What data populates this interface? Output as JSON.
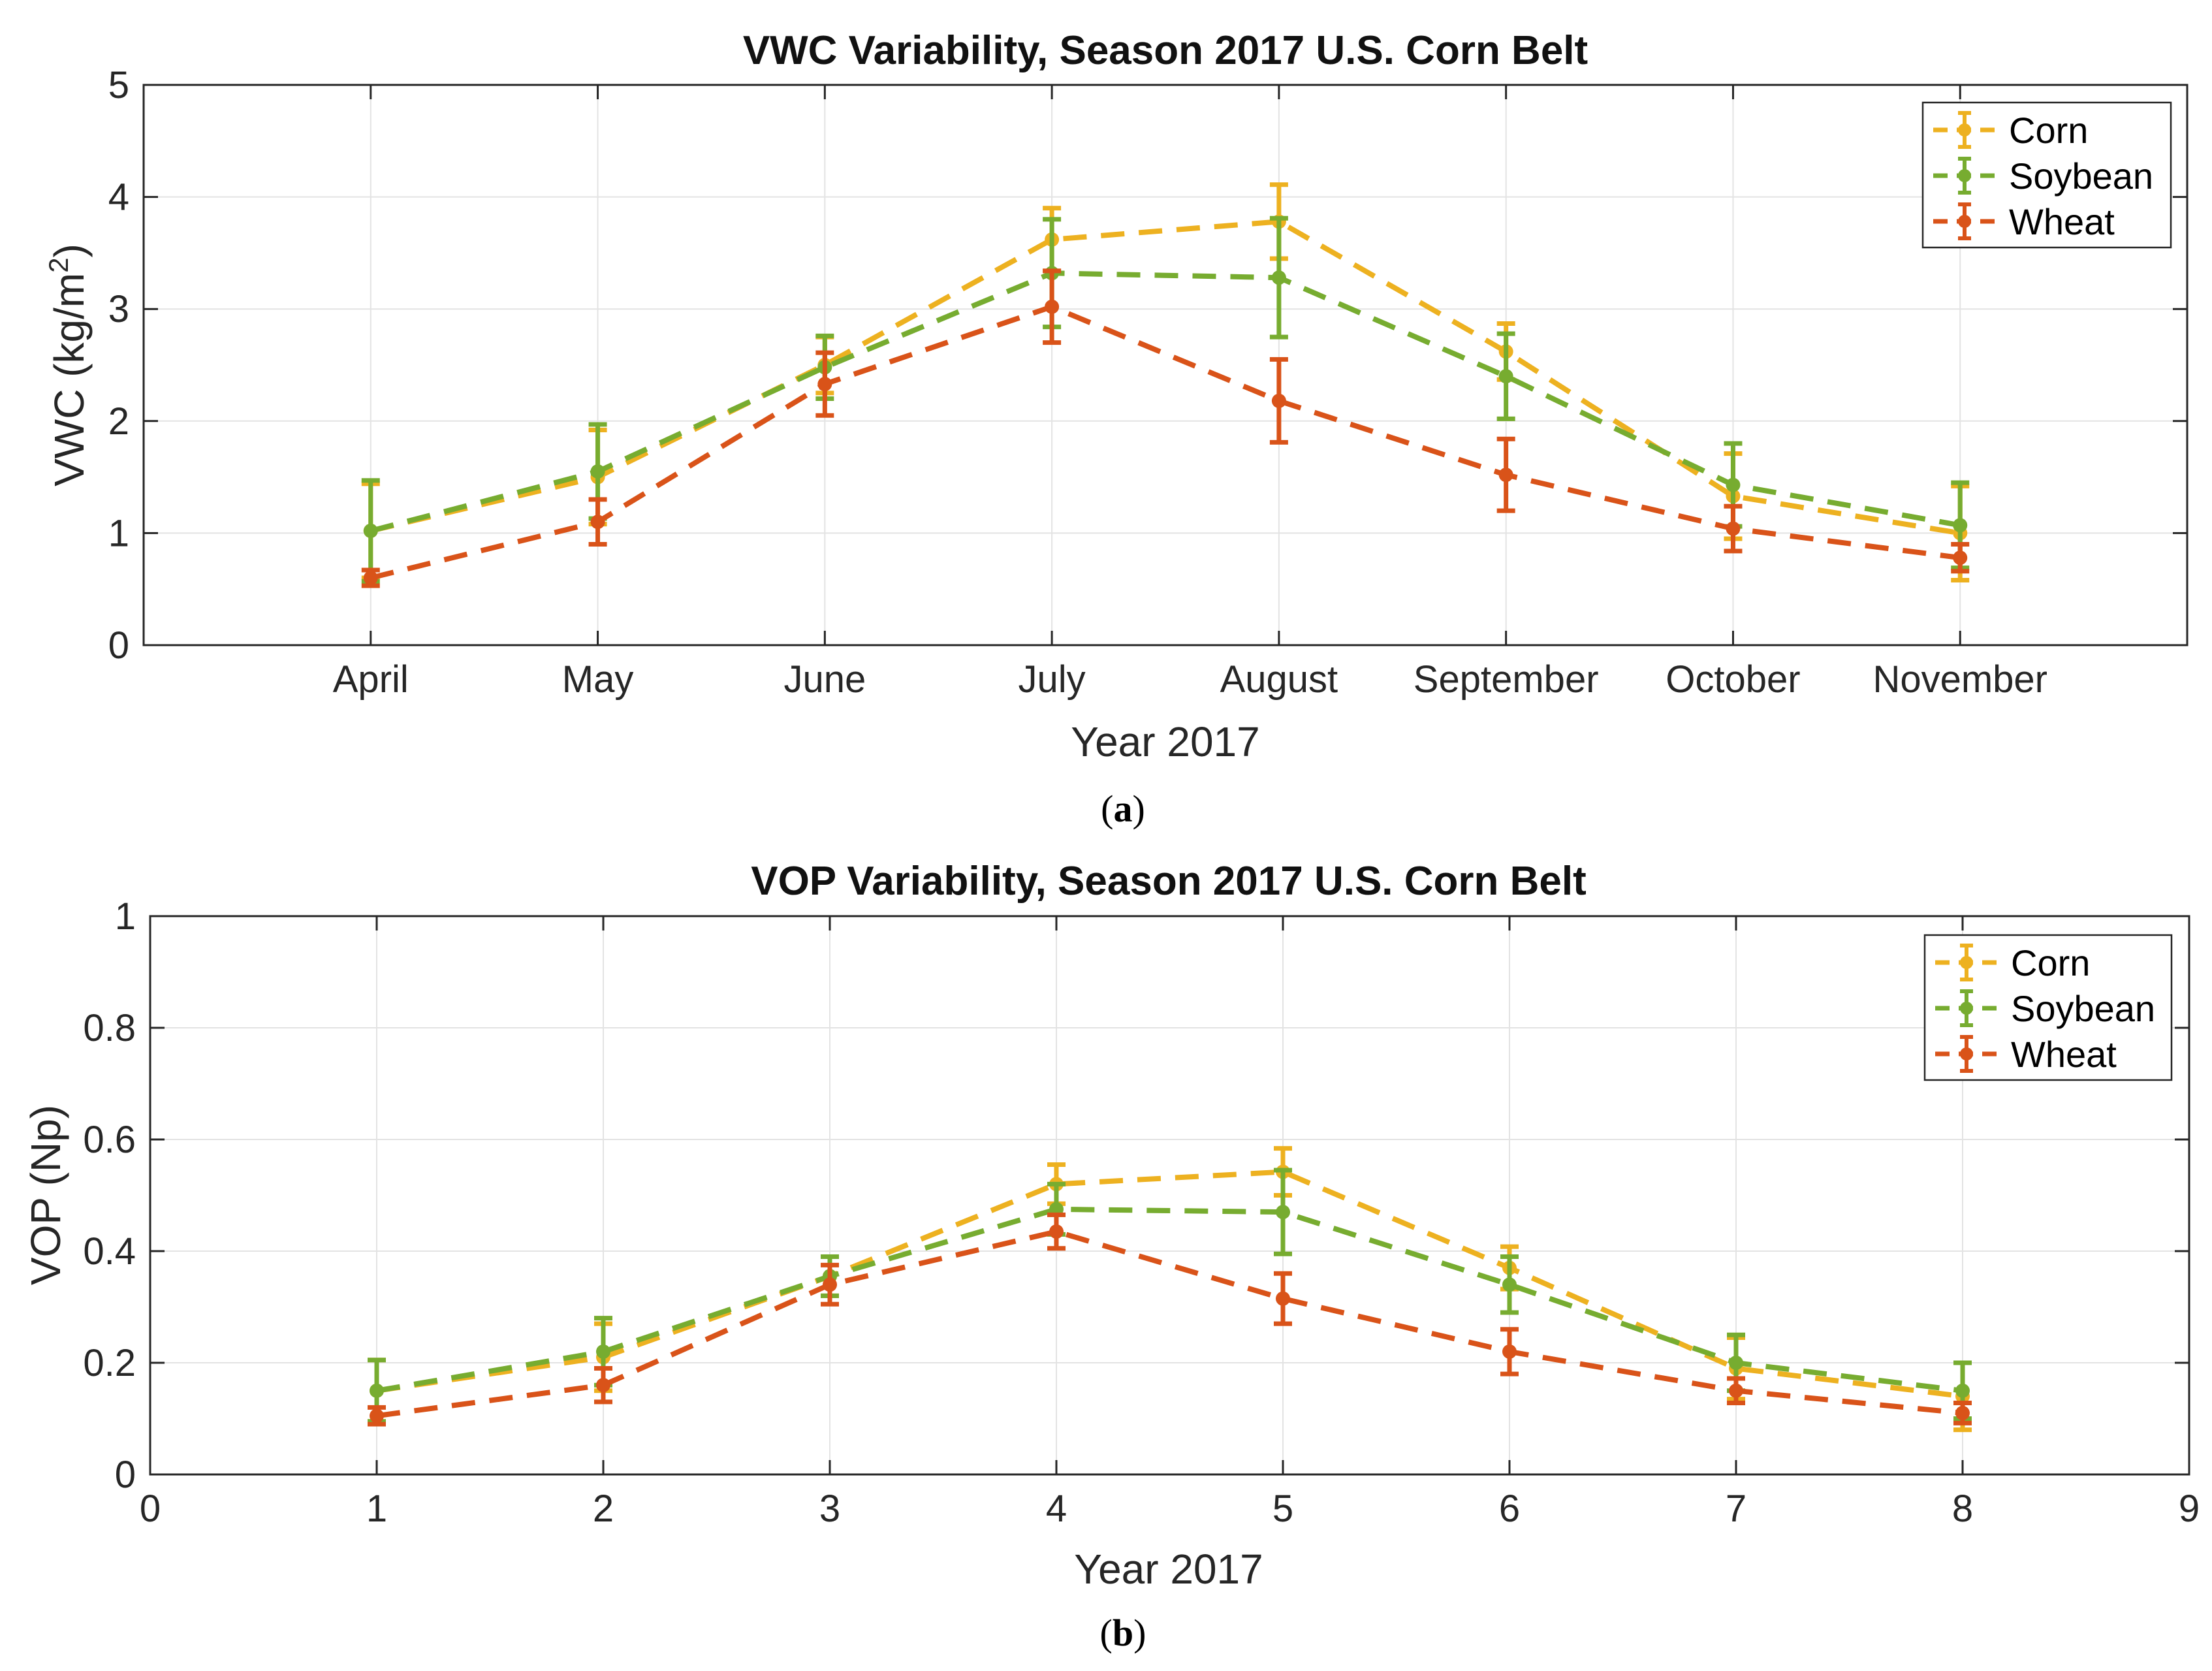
{
  "figure": {
    "panels": [
      {
        "caption_letter": "a",
        "chart_data": {
          "type": "line",
          "title": "VWC Variability, Season 2017 U.S. Corn Belt",
          "xlabel": "Year 2017",
          "ylabel": "VWC (kg/m²)",
          "ylabel_parts": {
            "main": "VWC (kg/m",
            "sup": "2",
            "close": ")"
          },
          "xlim": [
            0,
            9
          ],
          "ylim": [
            0,
            5
          ],
          "grid": true,
          "x": [
            1,
            2,
            3,
            4,
            5,
            6,
            7,
            8
          ],
          "xtick_values": [
            1,
            2,
            3,
            4,
            5,
            6,
            7,
            8
          ],
          "xtick_labels": [
            "April",
            "May",
            "June",
            "July",
            "August",
            "September",
            "October",
            "November"
          ],
          "ytick_values": [
            0,
            1,
            2,
            3,
            4,
            5
          ],
          "ytick_labels": [
            "0",
            "1",
            "2",
            "3",
            "4",
            "5"
          ],
          "legend_position": "top-right",
          "series": [
            {
              "name": "Corn",
              "color": "#EDB120",
              "values": [
                1.02,
                1.5,
                2.5,
                3.62,
                3.78,
                2.62,
                1.33,
                1.0
              ],
              "errors": [
                0.42,
                0.42,
                0.25,
                0.28,
                0.33,
                0.25,
                0.38,
                0.42
              ]
            },
            {
              "name": "Soybean",
              "color": "#77AC30",
              "values": [
                1.02,
                1.55,
                2.48,
                3.32,
                3.28,
                2.4,
                1.43,
                1.07
              ],
              "errors": [
                0.45,
                0.42,
                0.28,
                0.48,
                0.53,
                0.38,
                0.37,
                0.38
              ]
            },
            {
              "name": "Wheat",
              "color": "#D95319",
              "values": [
                0.6,
                1.1,
                2.33,
                3.02,
                2.18,
                1.52,
                1.04,
                0.78
              ],
              "errors": [
                0.07,
                0.2,
                0.28,
                0.32,
                0.37,
                0.32,
                0.2,
                0.12
              ]
            }
          ]
        }
      },
      {
        "caption_letter": "b",
        "chart_data": {
          "type": "line",
          "title": "VOP Variability, Season 2017 U.S. Corn Belt",
          "xlabel": "Year 2017",
          "ylabel": "VOP (Np)",
          "xlim": [
            0,
            9
          ],
          "ylim": [
            0,
            1
          ],
          "grid": true,
          "x": [
            1,
            2,
            3,
            4,
            5,
            6,
            7,
            8
          ],
          "xtick_values": [
            0,
            1,
            2,
            3,
            4,
            5,
            6,
            7,
            8,
            9
          ],
          "xtick_labels": [
            "0",
            "1",
            "2",
            "3",
            "4",
            "5",
            "6",
            "7",
            "8",
            "9"
          ],
          "ytick_values": [
            0,
            0.2,
            0.4,
            0.6,
            0.8,
            1
          ],
          "ytick_labels": [
            "0",
            "0.2",
            "0.4",
            "0.6",
            "0.8",
            "1"
          ],
          "legend_position": "top-right",
          "series": [
            {
              "name": "Corn",
              "color": "#EDB120",
              "values": [
                0.15,
                0.21,
                0.355,
                0.52,
                0.542,
                0.37,
                0.19,
                0.14
              ],
              "errors": [
                0.055,
                0.06,
                0.035,
                0.035,
                0.042,
                0.038,
                0.055,
                0.06
              ]
            },
            {
              "name": "Soybean",
              "color": "#77AC30",
              "values": [
                0.15,
                0.22,
                0.355,
                0.475,
                0.47,
                0.34,
                0.2,
                0.15
              ],
              "errors": [
                0.055,
                0.06,
                0.035,
                0.045,
                0.075,
                0.05,
                0.05,
                0.05
              ]
            },
            {
              "name": "Wheat",
              "color": "#D95319",
              "values": [
                0.105,
                0.16,
                0.34,
                0.435,
                0.315,
                0.22,
                0.15,
                0.11
              ],
              "errors": [
                0.015,
                0.03,
                0.035,
                0.03,
                0.045,
                0.04,
                0.022,
                0.018
              ]
            }
          ]
        }
      }
    ]
  }
}
